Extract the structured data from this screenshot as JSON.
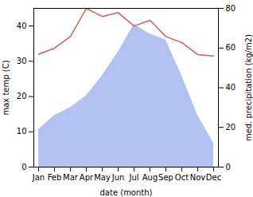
{
  "chart_data": {
    "type": "line",
    "categories": [
      "Jan",
      "Feb",
      "Mar",
      "Apr",
      "May",
      "Jun",
      "Jul",
      "Aug",
      "Sep",
      "Oct",
      "Nov",
      "Dec"
    ],
    "x_label": "date (month)",
    "y_label": "max temp (C)",
    "y2_label": "med. precipitation (kg/m2)",
    "ylim": [
      0,
      45
    ],
    "yticks": [
      0,
      10,
      20,
      30,
      40
    ],
    "y2lim": [
      0,
      80
    ],
    "y2ticks": [
      0,
      20,
      40,
      60,
      80
    ],
    "grid": false,
    "series": [
      {
        "name": "med. precipitation (kg/m2)",
        "type": "area",
        "axis": "y2",
        "color": "#b3c1f2",
        "values": [
          19,
          26,
          30,
          36,
          46,
          58,
          72,
          67,
          64,
          46,
          26,
          12
        ]
      },
      {
        "name": "max temp (C)",
        "type": "line",
        "axis": "y",
        "color": "#d45c5c",
        "values": [
          32,
          33.7,
          37,
          45,
          42.7,
          43.8,
          40,
          41.6,
          37,
          35.3,
          31.9,
          31.5
        ]
      }
    ]
  }
}
